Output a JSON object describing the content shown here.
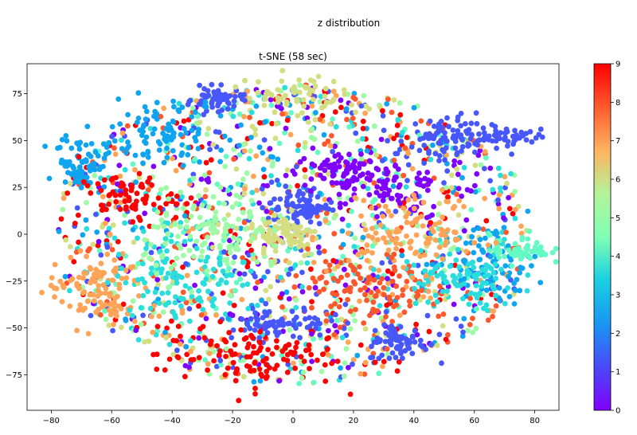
{
  "figure": {
    "suptitle": "z distribution"
  },
  "chart_data": {
    "type": "scatter",
    "title": "t-SNE (58 sec)",
    "xlabel": "",
    "ylabel": "",
    "xlim": [
      -88,
      88
    ],
    "ylim": [
      -94,
      91
    ],
    "xticks": [
      -80,
      -60,
      -40,
      -20,
      0,
      20,
      40,
      60,
      80
    ],
    "yticks": [
      -75,
      -50,
      -25,
      0,
      25,
      50,
      75
    ],
    "grid": false,
    "colormap": "rainbow",
    "color_range": [
      0,
      9
    ],
    "colorbar_ticks": [
      0,
      1,
      2,
      3,
      4,
      5,
      6,
      7,
      8,
      9
    ],
    "n_points_approx": 10000,
    "clusters": [
      {
        "label": 1,
        "center": [
          -25,
          72
        ],
        "spread": [
          4,
          3
        ],
        "n": 60
      },
      {
        "label": 2,
        "center": [
          -70,
          38
        ],
        "spread": [
          4,
          7
        ],
        "n": 70
      },
      {
        "label": 1,
        "center": [
          50,
          50
        ],
        "spread": [
          8,
          7
        ],
        "n": 90
      },
      {
        "label": 1,
        "center": [
          70,
          52
        ],
        "spread": [
          6,
          2
        ],
        "n": 40
      },
      {
        "label": 1,
        "center": [
          2,
          15
        ],
        "spread": [
          5,
          5
        ],
        "n": 80
      },
      {
        "label": 6,
        "center": [
          -3,
          0
        ],
        "spread": [
          6,
          6
        ],
        "n": 90
      },
      {
        "label": 1,
        "center": [
          35,
          -58
        ],
        "spread": [
          5,
          5
        ],
        "n": 70
      },
      {
        "label": 1,
        "center": [
          -5,
          -47
        ],
        "spread": [
          8,
          4
        ],
        "n": 70
      },
      {
        "label": 0,
        "center": [
          15,
          35
        ],
        "spread": [
          6,
          5
        ],
        "n": 60
      },
      {
        "label": 2,
        "center": [
          65,
          -15
        ],
        "spread": [
          8,
          10
        ],
        "n": 80
      },
      {
        "label": 9,
        "center": [
          -55,
          20
        ],
        "spread": [
          8,
          6
        ],
        "n": 70
      },
      {
        "label": 9,
        "center": [
          -15,
          -65
        ],
        "spread": [
          15,
          8
        ],
        "n": 110
      },
      {
        "label": 7,
        "center": [
          -65,
          -30
        ],
        "spread": [
          8,
          10
        ],
        "n": 110
      },
      {
        "label": 4,
        "center": [
          75,
          -8
        ],
        "spread": [
          5,
          4
        ],
        "n": 60
      },
      {
        "label": 3,
        "center": [
          -35,
          -20
        ],
        "spread": [
          12,
          12
        ],
        "n": 110
      },
      {
        "label": 6,
        "center": [
          0,
          75
        ],
        "spread": [
          8,
          5
        ],
        "n": 60
      },
      {
        "label": 0,
        "center": [
          30,
          25
        ],
        "spread": [
          10,
          8
        ],
        "n": 80
      },
      {
        "label": 8,
        "center": [
          25,
          -30
        ],
        "spread": [
          10,
          10
        ],
        "n": 100
      },
      {
        "label": 5,
        "center": [
          -25,
          0
        ],
        "spread": [
          12,
          12
        ],
        "n": 120
      },
      {
        "label": 3,
        "center": [
          55,
          -25
        ],
        "spread": [
          10,
          8
        ],
        "n": 90
      },
      {
        "label": 2,
        "center": [
          -45,
          55
        ],
        "spread": [
          12,
          8
        ],
        "n": 100
      },
      {
        "label": 7,
        "center": [
          40,
          0
        ],
        "spread": [
          12,
          10
        ],
        "n": 100
      }
    ]
  }
}
